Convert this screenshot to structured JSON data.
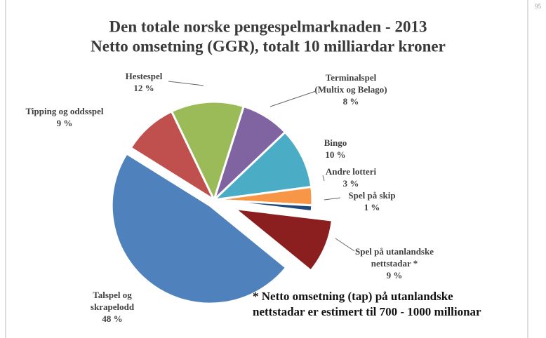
{
  "page_number": "95",
  "chart_data": {
    "type": "pie",
    "title": "Den totale norske pengespelmarknaden - 2013",
    "subtitle": "Netto omsetning (GGR), totalt 10 milliardar kroner",
    "categories": [
      "Tipping og oddsspel",
      "Hestespel",
      "Terminalspel\n(Multix og Belago)",
      "Bingo",
      "Andre lotteri",
      "Spel på skip",
      "Spel på utanlandske\nnettstadar *",
      "Talspel og\nskrapelodd"
    ],
    "values": [
      9,
      12,
      8,
      10,
      3,
      1,
      9,
      48
    ],
    "value_labels": [
      "9 %",
      "12 %",
      "8 %",
      "10 %",
      "3 %",
      "1 %",
      "9 %",
      "48 %"
    ],
    "colors": [
      "#c0504d",
      "#9bbb59",
      "#8064a2",
      "#4bacc6",
      "#f79646",
      "#1f497d",
      "#8b1e1e",
      "#4f81bd"
    ],
    "annotation": "* Netto omsetning (tap) på utanlandske\nnettstadar er estimert til 700 - 1000 millionar"
  }
}
